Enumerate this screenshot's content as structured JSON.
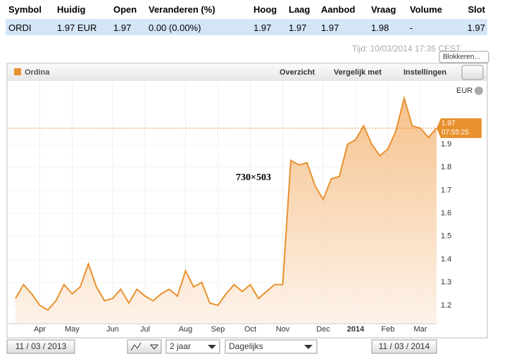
{
  "table": {
    "header": [
      "Symbol",
      "Huidig",
      "Open",
      "Veranderen (%)",
      "Hoog",
      "Laag",
      "Aanbod",
      "Vraag",
      "Volume",
      "Slot"
    ],
    "rows": [
      [
        "ORDI",
        "1.97 EUR",
        "1.97",
        "0.00 (0.00%)",
        "1.97",
        "1.97",
        "1.97",
        "1.98",
        "-",
        "1.97"
      ]
    ]
  },
  "timestamp": "Tijd: 10/03/2014 17:35 CEST",
  "block_button": "Blokkeren...",
  "panel": {
    "title": "Ordina",
    "nav": [
      "Overzicht",
      "Vergelijk met",
      "Instellingen"
    ]
  },
  "chart_data": {
    "type": "line",
    "currency": "EUR",
    "watermark": "730×503",
    "categories": [
      null,
      null,
      null,
      "Apr",
      null,
      null,
      null,
      "May",
      null,
      null,
      null,
      null,
      "Jun",
      null,
      null,
      null,
      "Jul",
      null,
      null,
      null,
      null,
      "Aug",
      null,
      null,
      null,
      "Sep",
      null,
      null,
      null,
      "Oct",
      null,
      null,
      null,
      "Nov",
      null,
      null,
      null,
      null,
      "Dec",
      null,
      null,
      null,
      "2014",
      null,
      null,
      null,
      "Feb",
      null,
      null,
      null,
      "Mar",
      null,
      null
    ],
    "values": [
      1.23,
      1.29,
      1.25,
      1.2,
      1.18,
      1.22,
      1.29,
      1.25,
      1.28,
      1.38,
      1.28,
      1.22,
      1.23,
      1.27,
      1.21,
      1.27,
      1.24,
      1.22,
      1.25,
      1.27,
      1.24,
      1.35,
      1.28,
      1.3,
      1.21,
      1.2,
      1.25,
      1.29,
      1.26,
      1.29,
      1.23,
      1.26,
      1.29,
      1.29,
      1.83,
      1.81,
      1.82,
      1.72,
      1.66,
      1.75,
      1.76,
      1.9,
      1.92,
      1.98,
      1.9,
      1.85,
      1.88,
      1.96,
      2.1,
      1.98,
      1.97,
      1.93,
      1.97
    ],
    "color": "#e8912e",
    "last_price": 1.97,
    "last_time": "07:55:25",
    "ylim": [
      1.12,
      2.16
    ],
    "yticks": [
      1.2,
      1.3,
      1.4,
      1.5,
      1.6,
      1.7,
      1.8,
      1.9
    ],
    "grid": true
  },
  "controls": {
    "start_date": "11 / 03 / 2013",
    "period": "2 jaar",
    "interval": "Dagelijks",
    "end_date": "11 / 03 / 2014"
  }
}
